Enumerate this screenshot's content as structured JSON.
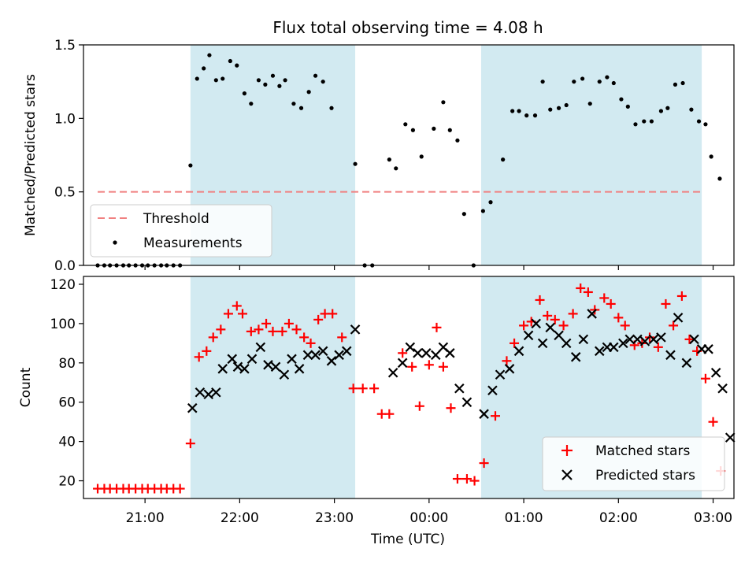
{
  "chart_data": {
    "type": "scatter",
    "title": "Flux total observing time = 4.08 h",
    "xlabel": "Time (UTC)",
    "x_tick_labels": [
      "21:00",
      "22:00",
      "23:00",
      "00:00",
      "01:00",
      "02:00",
      "03:00"
    ],
    "x_tick_hours": [
      0,
      1,
      2,
      3,
      4,
      5,
      6
    ],
    "x_range_hours": [
      -0.65,
      6.22
    ],
    "observing_windows_hours": [
      [
        0.48,
        2.22
      ],
      [
        3.55,
        5.88
      ]
    ],
    "colors": {
      "window": "#add8e6",
      "threshold": "#f08080",
      "measurements": "#000000",
      "matched": "#ff0000",
      "predicted": "#000000"
    },
    "top_panel": {
      "ylabel": "Matched/Predicted stars",
      "ylim": [
        0,
        1.5
      ],
      "y_ticks": [
        "0.0",
        "0.5",
        "1.0",
        "1.5"
      ],
      "threshold": {
        "name": "Threshold",
        "value": 0.5,
        "x_start": -0.5,
        "x_end": 5.88
      },
      "legend_position": "lower-left",
      "measurements": {
        "name": "Measurements",
        "points": [
          [
            -0.5,
            0
          ],
          [
            -0.43,
            0
          ],
          [
            -0.37,
            0
          ],
          [
            -0.3,
            0
          ],
          [
            -0.23,
            0
          ],
          [
            -0.17,
            0
          ],
          [
            -0.1,
            0
          ],
          [
            -0.03,
            0
          ],
          [
            0.03,
            0
          ],
          [
            0.1,
            0
          ],
          [
            0.17,
            0
          ],
          [
            0.23,
            0
          ],
          [
            0.3,
            0
          ],
          [
            0.37,
            0
          ],
          [
            0.48,
            0.68
          ],
          [
            0.55,
            1.27
          ],
          [
            0.62,
            1.34
          ],
          [
            0.68,
            1.43
          ],
          [
            0.75,
            1.26
          ],
          [
            0.82,
            1.27
          ],
          [
            0.9,
            1.39
          ],
          [
            0.97,
            1.36
          ],
          [
            1.05,
            1.17
          ],
          [
            1.12,
            1.1
          ],
          [
            1.2,
            1.26
          ],
          [
            1.27,
            1.23
          ],
          [
            1.35,
            1.29
          ],
          [
            1.42,
            1.22
          ],
          [
            1.48,
            1.26
          ],
          [
            1.57,
            1.1
          ],
          [
            1.65,
            1.07
          ],
          [
            1.73,
            1.18
          ],
          [
            1.8,
            1.29
          ],
          [
            1.88,
            1.25
          ],
          [
            1.97,
            1.07
          ],
          [
            2.22,
            0.69
          ],
          [
            2.32,
            0
          ],
          [
            2.4,
            0
          ],
          [
            2.58,
            0.72
          ],
          [
            2.65,
            0.66
          ],
          [
            2.75,
            0.96
          ],
          [
            2.83,
            0.92
          ],
          [
            2.92,
            0.74
          ],
          [
            3.05,
            0.93
          ],
          [
            3.15,
            1.11
          ],
          [
            3.22,
            0.92
          ],
          [
            3.3,
            0.85
          ],
          [
            3.37,
            0.35
          ],
          [
            3.47,
            0
          ],
          [
            3.57,
            0.37
          ],
          [
            3.65,
            0.43
          ],
          [
            3.78,
            0.72
          ],
          [
            3.88,
            1.05
          ],
          [
            3.95,
            1.05
          ],
          [
            4.03,
            1.02
          ],
          [
            4.12,
            1.02
          ],
          [
            4.2,
            1.25
          ],
          [
            4.28,
            1.06
          ],
          [
            4.37,
            1.07
          ],
          [
            4.45,
            1.09
          ],
          [
            4.53,
            1.25
          ],
          [
            4.62,
            1.27
          ],
          [
            4.7,
            1.1
          ],
          [
            4.8,
            1.25
          ],
          [
            4.88,
            1.28
          ],
          [
            4.95,
            1.24
          ],
          [
            5.03,
            1.13
          ],
          [
            5.1,
            1.08
          ],
          [
            5.18,
            0.96
          ],
          [
            5.27,
            0.98
          ],
          [
            5.35,
            0.98
          ],
          [
            5.45,
            1.05
          ],
          [
            5.52,
            1.07
          ],
          [
            5.6,
            1.23
          ],
          [
            5.68,
            1.24
          ],
          [
            5.77,
            1.06
          ],
          [
            5.85,
            0.98
          ],
          [
            5.92,
            0.96
          ],
          [
            5.98,
            0.74
          ],
          [
            6.07,
            0.59
          ]
        ]
      }
    },
    "bottom_panel": {
      "ylabel": "Count",
      "ylim": [
        11,
        124
      ],
      "y_ticks": [
        "20",
        "40",
        "60",
        "80",
        "100",
        "120"
      ],
      "y_tick_values": [
        20,
        40,
        60,
        80,
        100,
        120
      ],
      "legend_position": "lower-right",
      "series": [
        {
          "name": "Matched stars",
          "marker": "plus",
          "points": [
            [
              -0.5,
              16
            ],
            [
              -0.43,
              16
            ],
            [
              -0.37,
              16
            ],
            [
              -0.3,
              16
            ],
            [
              -0.23,
              16
            ],
            [
              -0.17,
              16
            ],
            [
              -0.1,
              16
            ],
            [
              -0.03,
              16
            ],
            [
              0.03,
              16
            ],
            [
              0.1,
              16
            ],
            [
              0.17,
              16
            ],
            [
              0.23,
              16
            ],
            [
              0.3,
              16
            ],
            [
              0.37,
              16
            ],
            [
              0.48,
              39
            ],
            [
              0.57,
              83
            ],
            [
              0.65,
              86
            ],
            [
              0.72,
              93
            ],
            [
              0.8,
              97
            ],
            [
              0.88,
              105
            ],
            [
              0.97,
              109
            ],
            [
              1.03,
              105
            ],
            [
              1.12,
              96
            ],
            [
              1.2,
              97
            ],
            [
              1.28,
              100
            ],
            [
              1.35,
              96
            ],
            [
              1.45,
              96
            ],
            [
              1.52,
              100
            ],
            [
              1.6,
              97
            ],
            [
              1.68,
              93
            ],
            [
              1.75,
              90
            ],
            [
              1.83,
              102
            ],
            [
              1.9,
              105
            ],
            [
              1.98,
              105
            ],
            [
              2.08,
              93
            ],
            [
              2.2,
              67
            ],
            [
              2.3,
              67
            ],
            [
              2.42,
              67
            ],
            [
              2.5,
              54
            ],
            [
              2.58,
              54
            ],
            [
              2.72,
              85
            ],
            [
              2.82,
              78
            ],
            [
              2.9,
              58
            ],
            [
              3.0,
              79
            ],
            [
              3.08,
              98
            ],
            [
              3.15,
              78
            ],
            [
              3.23,
              57
            ],
            [
              3.3,
              21
            ],
            [
              3.4,
              21
            ],
            [
              3.48,
              20
            ],
            [
              3.58,
              29
            ],
            [
              3.7,
              53
            ],
            [
              3.82,
              81
            ],
            [
              3.9,
              90
            ],
            [
              4.0,
              99
            ],
            [
              4.08,
              101
            ],
            [
              4.17,
              112
            ],
            [
              4.25,
              104
            ],
            [
              4.33,
              102
            ],
            [
              4.42,
              99
            ],
            [
              4.52,
              105
            ],
            [
              4.6,
              118
            ],
            [
              4.68,
              116
            ],
            [
              4.75,
              107
            ],
            [
              4.85,
              113
            ],
            [
              4.92,
              110
            ],
            [
              5.0,
              103
            ],
            [
              5.07,
              99
            ],
            [
              5.17,
              89
            ],
            [
              5.25,
              90
            ],
            [
              5.33,
              93
            ],
            [
              5.42,
              88
            ],
            [
              5.5,
              110
            ],
            [
              5.58,
              99
            ],
            [
              5.67,
              114
            ],
            [
              5.75,
              92
            ],
            [
              5.83,
              86
            ],
            [
              5.92,
              72
            ],
            [
              6.0,
              50
            ],
            [
              6.08,
              25
            ]
          ]
        },
        {
          "name": "Predicted stars",
          "marker": "x",
          "points": [
            [
              0.5,
              57
            ],
            [
              0.58,
              65
            ],
            [
              0.67,
              64
            ],
            [
              0.75,
              65
            ],
            [
              0.82,
              77
            ],
            [
              0.92,
              82
            ],
            [
              0.98,
              78
            ],
            [
              1.05,
              77
            ],
            [
              1.13,
              82
            ],
            [
              1.22,
              88
            ],
            [
              1.3,
              79
            ],
            [
              1.38,
              78
            ],
            [
              1.47,
              74
            ],
            [
              1.55,
              82
            ],
            [
              1.63,
              77
            ],
            [
              1.72,
              84
            ],
            [
              1.8,
              84
            ],
            [
              1.88,
              86
            ],
            [
              1.97,
              81
            ],
            [
              2.05,
              84
            ],
            [
              2.13,
              86
            ],
            [
              2.22,
              97
            ],
            [
              2.62,
              75
            ],
            [
              2.72,
              80
            ],
            [
              2.8,
              88
            ],
            [
              2.88,
              85
            ],
            [
              2.97,
              85
            ],
            [
              3.07,
              84
            ],
            [
              3.15,
              88
            ],
            [
              3.22,
              85
            ],
            [
              3.32,
              67
            ],
            [
              3.4,
              60
            ],
            [
              3.58,
              54
            ],
            [
              3.67,
              66
            ],
            [
              3.75,
              74
            ],
            [
              3.85,
              77
            ],
            [
              3.95,
              86
            ],
            [
              4.05,
              94
            ],
            [
              4.13,
              100
            ],
            [
              4.2,
              90
            ],
            [
              4.28,
              98
            ],
            [
              4.37,
              94
            ],
            [
              4.45,
              90
            ],
            [
              4.55,
              83
            ],
            [
              4.63,
              92
            ],
            [
              4.72,
              105
            ],
            [
              4.8,
              86
            ],
            [
              4.88,
              88
            ],
            [
              4.95,
              88
            ],
            [
              5.05,
              90
            ],
            [
              5.12,
              92
            ],
            [
              5.2,
              92
            ],
            [
              5.28,
              91
            ],
            [
              5.37,
              92
            ],
            [
              5.45,
              93
            ],
            [
              5.55,
              84
            ],
            [
              5.63,
              103
            ],
            [
              5.72,
              80
            ],
            [
              5.8,
              92
            ],
            [
              5.88,
              87
            ],
            [
              5.95,
              87
            ],
            [
              6.03,
              75
            ],
            [
              6.1,
              67
            ],
            [
              6.18,
              42
            ]
          ]
        }
      ]
    }
  }
}
